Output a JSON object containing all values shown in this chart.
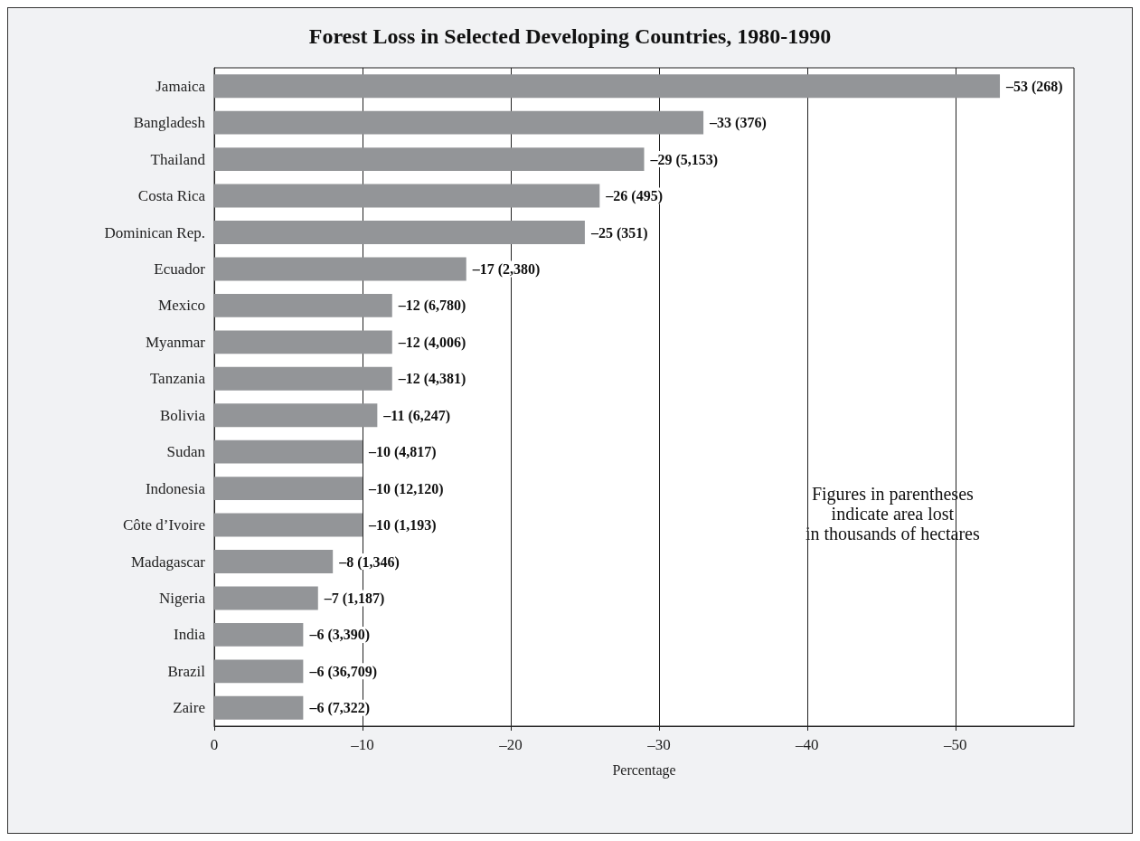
{
  "chart_data": {
    "type": "bar",
    "orientation": "horizontal",
    "title": "Forest Loss in Selected Developing Countries, 1980-1990",
    "xlabel": "Percentage",
    "categories": [
      "Jamaica",
      "Bangladesh",
      "Thailand",
      "Costa Rica",
      "Dominican Rep.",
      "Ecuador",
      "Mexico",
      "Myanmar",
      "Tanzania",
      "Bolivia",
      "Sudan",
      "Indonesia",
      "Côte d’Ivoire",
      "Madagascar",
      "Nigeria",
      "India",
      "Brazil",
      "Zaire"
    ],
    "values": [
      -53,
      -33,
      -29,
      -26,
      -25,
      -17,
      -12,
      -12,
      -12,
      -11,
      -10,
      -10,
      -10,
      -8,
      -7,
      -6,
      -6,
      -6
    ],
    "value_labels": [
      "–53 (268)",
      "–33 (376)",
      "–29 (5,153)",
      "–26 (495)",
      "–25 (351)",
      "–17 (2,380)",
      "–12 (6,780)",
      "–12 (4,006)",
      "–12 (4,381)",
      "–11 (6,247)",
      "–10 (4,817)",
      "–10 (12,120)",
      "–10 (1,193)",
      "–8 (1,346)",
      "–7 (1,187)",
      "–6 (3,390)",
      "–6 (36,709)",
      "–6 (7,322)"
    ],
    "color": "#939598",
    "xlim": [
      0,
      -58
    ],
    "xticks": [
      0,
      {
        "value": -10,
        "label": "–10"
      },
      {
        "value": -20,
        "label": "–20"
      },
      {
        "value": -30,
        "label": "–30"
      },
      {
        "value": -40,
        "label": "–40"
      },
      {
        "value": -50,
        "label": "–50"
      }
    ],
    "grid": "x",
    "annotations": [
      "Figures in parentheses\nindicate area lost\nin thousands of hectares"
    ]
  }
}
